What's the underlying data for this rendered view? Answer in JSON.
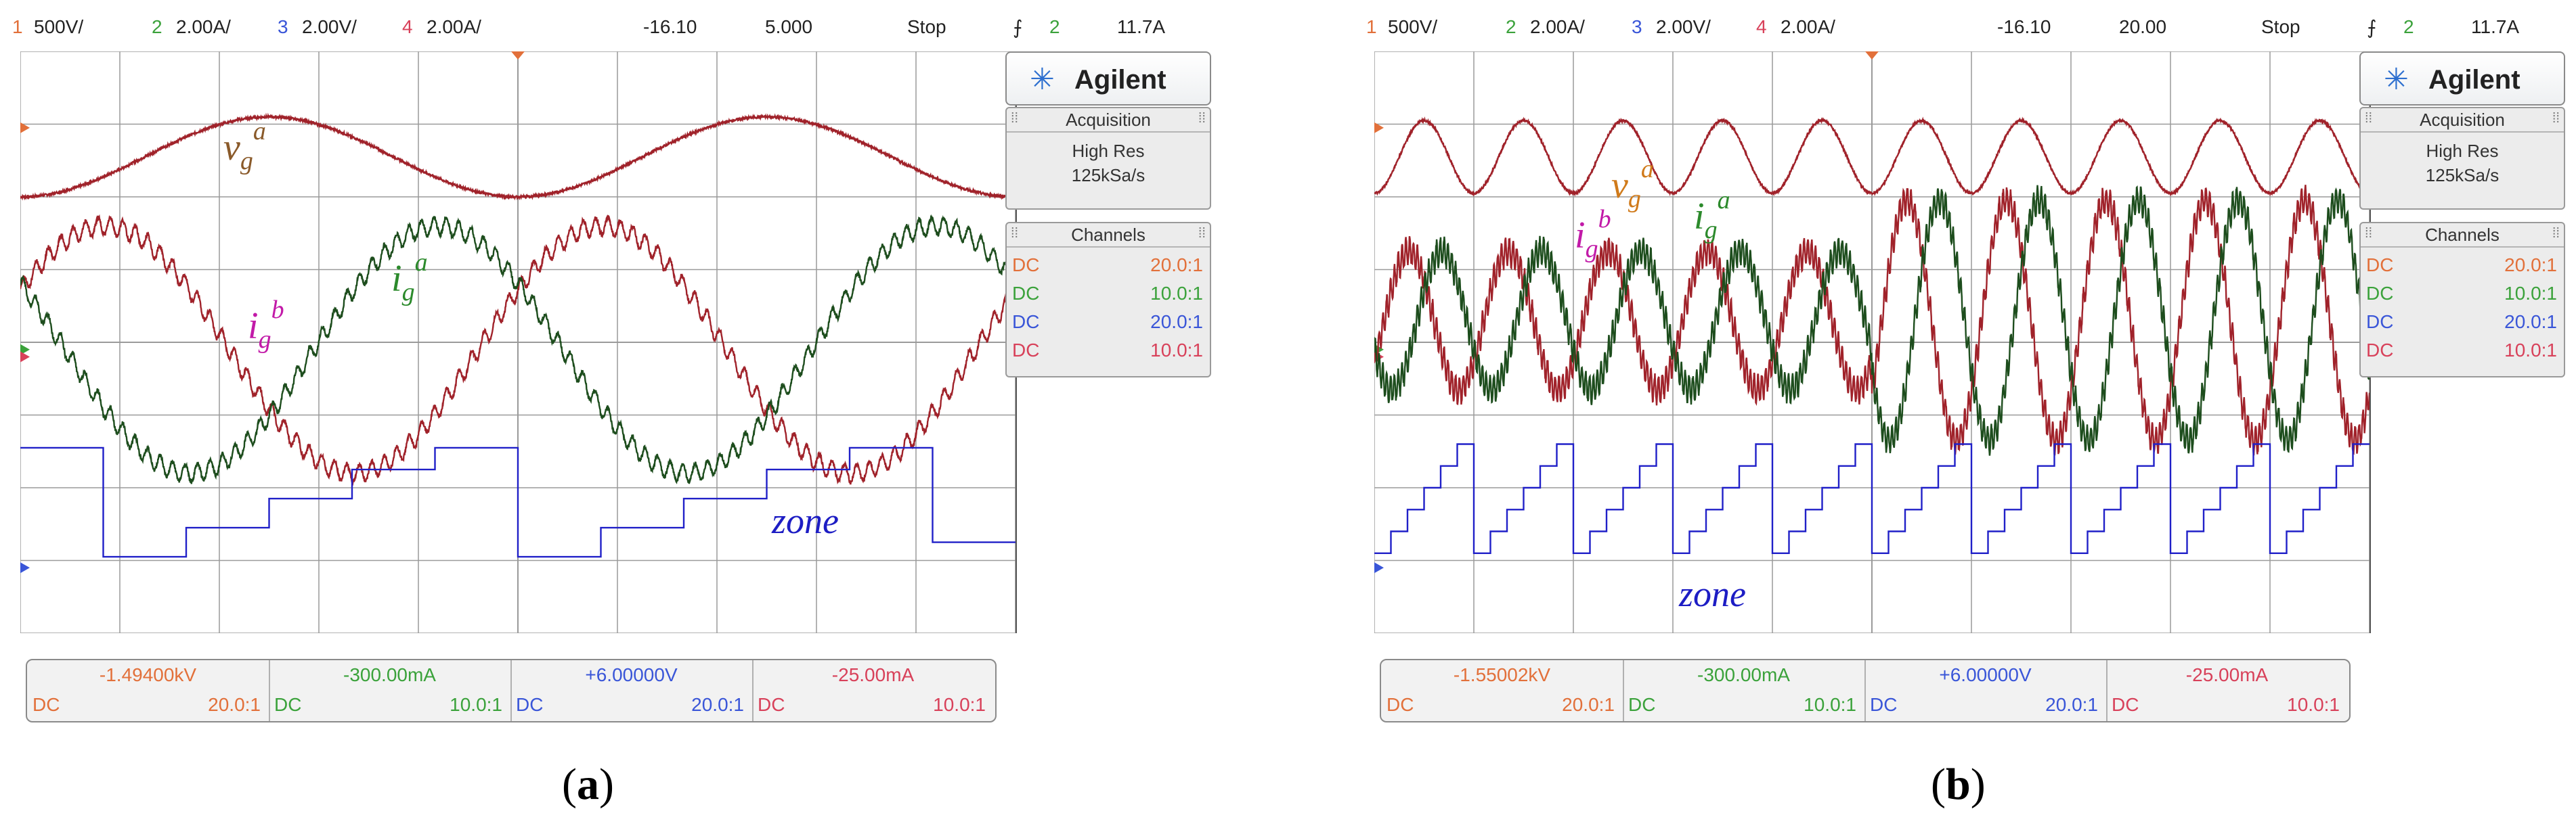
{
  "panels": [
    {
      "id": "a",
      "label": "(a)",
      "label_text": "a",
      "header": {
        "ch1": {
          "num": "1",
          "scale": "500V/"
        },
        "ch2": {
          "num": "2",
          "scale": "2.00A/"
        },
        "ch3": {
          "num": "3",
          "scale": "2.00V/"
        },
        "ch4": {
          "num": "4",
          "scale": "2.00A/"
        },
        "delay": "-16.10",
        "timebase": "5.000",
        "run_state": "Stop",
        "trigger_icon": "trigger-edge-icon",
        "trigger_channel": "2",
        "trigger_level": "11.7A"
      },
      "side": {
        "brand": "Agilent",
        "acquisition_title": "Acquisition",
        "acquisition_mode": "High Res",
        "sample_rate": "125kSa/s",
        "channels_title": "Channels",
        "channels": [
          {
            "coupling": "DC",
            "probe": "20.0:1",
            "color": "#e2703a"
          },
          {
            "coupling": "DC",
            "probe": "10.0:1",
            "color": "#3ba23b"
          },
          {
            "coupling": "DC",
            "probe": "20.0:1",
            "color": "#3a56d8"
          },
          {
            "coupling": "DC",
            "probe": "10.0:1",
            "color": "#d8415a"
          }
        ]
      },
      "offsets": [
        {
          "value": "-1.49400kV",
          "coupling": "DC",
          "probe": "20.0:1",
          "color": "#e2703a"
        },
        {
          "value": "-300.00mA",
          "coupling": "DC",
          "probe": "10.0:1",
          "color": "#3ba23b"
        },
        {
          "value": "+6.00000V",
          "coupling": "DC",
          "probe": "20.0:1",
          "color": "#3a56d8"
        },
        {
          "value": "-25.00mA",
          "coupling": "DC",
          "probe": "10.0:1",
          "color": "#d8415a"
        }
      ],
      "annotations": {
        "vg_base": "v",
        "vg_sub": "g",
        "vg_sup": "a",
        "ib_base": "i",
        "ib_sub": "g",
        "ib_sup": "b",
        "ia_base": "i",
        "ia_sub": "g",
        "ia_sup": "a",
        "zone": "zone"
      }
    },
    {
      "id": "b",
      "label": "(b)",
      "label_text": "b",
      "header": {
        "ch1": {
          "num": "1",
          "scale": "500V/"
        },
        "ch2": {
          "num": "2",
          "scale": "2.00A/"
        },
        "ch3": {
          "num": "3",
          "scale": "2.00V/"
        },
        "ch4": {
          "num": "4",
          "scale": "2.00A/"
        },
        "delay": "-16.10",
        "timebase": "20.00",
        "run_state": "Stop",
        "trigger_icon": "trigger-edge-icon",
        "trigger_channel": "2",
        "trigger_level": "11.7A"
      },
      "side": {
        "brand": "Agilent",
        "acquisition_title": "Acquisition",
        "acquisition_mode": "High Res",
        "sample_rate": "125kSa/s",
        "channels_title": "Channels",
        "channels": [
          {
            "coupling": "DC",
            "probe": "20.0:1",
            "color": "#e2703a"
          },
          {
            "coupling": "DC",
            "probe": "10.0:1",
            "color": "#3ba23b"
          },
          {
            "coupling": "DC",
            "probe": "20.0:1",
            "color": "#3a56d8"
          },
          {
            "coupling": "DC",
            "probe": "10.0:1",
            "color": "#d8415a"
          }
        ]
      },
      "offsets": [
        {
          "value": "-1.55002kV",
          "coupling": "DC",
          "probe": "20.0:1",
          "color": "#e2703a"
        },
        {
          "value": "-300.00mA",
          "coupling": "DC",
          "probe": "10.0:1",
          "color": "#3ba23b"
        },
        {
          "value": "+6.00000V",
          "coupling": "DC",
          "probe": "20.0:1",
          "color": "#3a56d8"
        },
        {
          "value": "-25.00mA",
          "coupling": "DC",
          "probe": "10.0:1",
          "color": "#d8415a"
        }
      ],
      "annotations": {
        "vg_base": "v",
        "vg_sub": "g",
        "vg_sup": "a",
        "ib_base": "i",
        "ib_sub": "g",
        "ib_sup": "b",
        "ia_base": "i",
        "ia_sub": "g",
        "ia_sup": "a",
        "zone": "zone"
      }
    }
  ],
  "chart_data": [
    {
      "type": "line",
      "panel": "a",
      "grid": true,
      "grid_divisions": {
        "x": 10,
        "y": 8
      },
      "x_range_div": [
        0,
        10
      ],
      "y_range_div": [
        0,
        8
      ],
      "series": [
        {
          "channel": "vg_a",
          "color": "#a0222a",
          "kind": "sine",
          "cycles": 2.0,
          "amp_div": 0.55,
          "offset_div": 6.55,
          "phase_cycles": 0.25,
          "noise_div": 0.03
        },
        {
          "channel": "ig_b",
          "color": "#a0222a",
          "kind": "sine",
          "cycles": 2.0,
          "amp_div": 1.7,
          "offset_div": 3.9,
          "phase_cycles": -0.08,
          "ripple_div": 0.12,
          "ripple_cycles": 80
        },
        {
          "channel": "ig_a",
          "color": "#1d4d1d",
          "kind": "sine",
          "cycles": 2.0,
          "amp_div": 1.7,
          "offset_div": 3.9,
          "phase_cycles": 0.59,
          "ripple_div": 0.12,
          "ripple_cycles": 80
        },
        {
          "channel": "zone",
          "color": "#2020c8",
          "kind": "steps",
          "levels_div": [
            2.55,
            2.35,
            1.05,
            1.25,
            1.45,
            1.65,
            1.85,
            2.05,
            2.25,
            2.45,
            2.55,
            2.35,
            1.05,
            1.25,
            1.45,
            1.65,
            1.85,
            2.05,
            2.25,
            2.45,
            2.55,
            1.05,
            1.25
          ],
          "sectors": 12,
          "cycles": 2.0
        }
      ]
    },
    {
      "type": "line",
      "panel": "b",
      "grid": true,
      "grid_divisions": {
        "x": 10,
        "y": 8
      },
      "x_range_div": [
        0,
        10
      ],
      "y_range_div": [
        0,
        8
      ],
      "series": [
        {
          "channel": "vg_a",
          "color": "#a0222a",
          "kind": "sine",
          "cycles": 10.0,
          "amp_div": 0.5,
          "offset_div": 6.55,
          "phase_cycles": 0.25,
          "noise_div": 0.03
        },
        {
          "channel": "ig_b",
          "color": "#a0222a",
          "kind": "sine_step",
          "cycles": 10.0,
          "amp_div_before": 0.95,
          "amp_div_after": 1.65,
          "step_at_div": 5.0,
          "offset_div": 4.3,
          "phase_cycles": 0.1,
          "ripple_div": 0.18,
          "ripple_cycles": 260
        },
        {
          "channel": "ig_a",
          "color": "#1d4d1d",
          "kind": "sine_step",
          "cycles": 10.0,
          "amp_div_before": 0.95,
          "amp_div_after": 1.65,
          "step_at_div": 5.0,
          "offset_div": 4.3,
          "phase_cycles": 0.43,
          "ripple_div": 0.18,
          "ripple_cycles": 260
        },
        {
          "channel": "zone",
          "color": "#2020c8",
          "kind": "steps",
          "sectors": 60,
          "cycles": 10.0
        }
      ]
    }
  ]
}
